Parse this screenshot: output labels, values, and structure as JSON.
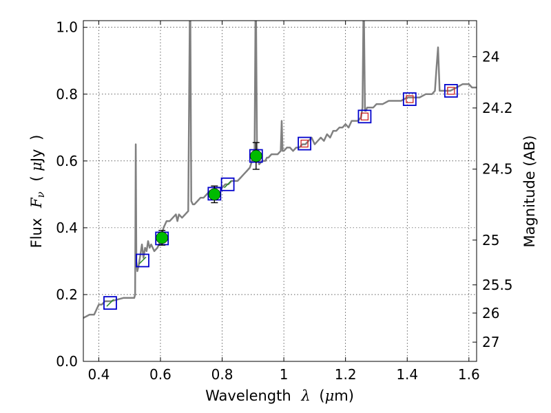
{
  "chart_data": {
    "type": "scatter",
    "xlabel": {
      "prefix": "Wavelength",
      "symbol": "λ",
      "units_open": "(",
      "units_mu": "μ",
      "units_rest": "m)"
    },
    "ylabel": {
      "prefix": "Flux",
      "symbol": "F",
      "sub": "ν",
      "units_open": "(",
      "units_mu": "μ",
      "units_rest": "Jy",
      "units_close": ")"
    },
    "y2label": "Magnitude (AB)",
    "xlim": [
      0.35,
      1.625
    ],
    "ylim": [
      0.0,
      1.02
    ],
    "grid": true,
    "x_ticks": [
      {
        "value": 0.4,
        "label": "0.4"
      },
      {
        "value": 0.6,
        "label": "0.6"
      },
      {
        "value": 0.8,
        "label": "0.8"
      },
      {
        "value": 1.0,
        "label": "1"
      },
      {
        "value": 1.2,
        "label": "1.2"
      },
      {
        "value": 1.4,
        "label": "1.4"
      },
      {
        "value": 1.6,
        "label": "1.6"
      }
    ],
    "y_ticks": [
      {
        "value": 0.0,
        "label": "0.0"
      },
      {
        "value": 0.2,
        "label": "0.2"
      },
      {
        "value": 0.4,
        "label": "0.4"
      },
      {
        "value": 0.6,
        "label": "0.6"
      },
      {
        "value": 0.8,
        "label": "0.8"
      },
      {
        "value": 1.0,
        "label": "1.0"
      }
    ],
    "mag_ticks": [
      {
        "mag": 24,
        "label": "24"
      },
      {
        "mag": 24.2,
        "label": "24.2"
      },
      {
        "mag": 24.5,
        "label": "24.5"
      },
      {
        "mag": 25,
        "label": "25"
      },
      {
        "mag": 25.5,
        "label": "25.5"
      },
      {
        "mag": 26,
        "label": "26"
      },
      {
        "mag": 27,
        "label": "27"
      }
    ],
    "model_spectrum": {
      "color": "#808080",
      "x": [
        0.35,
        0.37,
        0.385,
        0.4,
        0.41,
        0.42,
        0.43,
        0.44,
        0.46,
        0.48,
        0.5,
        0.51,
        0.515,
        0.518,
        0.52,
        0.522,
        0.525,
        0.53,
        0.535,
        0.54,
        0.545,
        0.55,
        0.555,
        0.56,
        0.565,
        0.57,
        0.58,
        0.59,
        0.6,
        0.61,
        0.62,
        0.63,
        0.64,
        0.65,
        0.655,
        0.66,
        0.67,
        0.68,
        0.69,
        0.695,
        0.697,
        0.7,
        0.705,
        0.71,
        0.72,
        0.73,
        0.74,
        0.75,
        0.76,
        0.77,
        0.78,
        0.79,
        0.8,
        0.81,
        0.82,
        0.83,
        0.84,
        0.85,
        0.86,
        0.87,
        0.88,
        0.89,
        0.9,
        0.905,
        0.908,
        0.91,
        0.913,
        0.916,
        0.92,
        0.93,
        0.94,
        0.945,
        0.95,
        0.96,
        0.97,
        0.98,
        0.99,
        0.993,
        0.996,
        1.0,
        1.01,
        1.02,
        1.03,
        1.04,
        1.05,
        1.06,
        1.07,
        1.08,
        1.09,
        1.1,
        1.11,
        1.12,
        1.13,
        1.14,
        1.15,
        1.16,
        1.17,
        1.18,
        1.19,
        1.2,
        1.21,
        1.22,
        1.23,
        1.24,
        1.25,
        1.255,
        1.258,
        1.26,
        1.263,
        1.266,
        1.27,
        1.28,
        1.29,
        1.3,
        1.32,
        1.34,
        1.36,
        1.38,
        1.4,
        1.42,
        1.44,
        1.46,
        1.48,
        1.49,
        1.495,
        1.5,
        1.505,
        1.51,
        1.52,
        1.54,
        1.56,
        1.58,
        1.6,
        1.61,
        1.625
      ],
      "y": [
        0.13,
        0.14,
        0.14,
        0.17,
        0.17,
        0.18,
        0.18,
        0.18,
        0.185,
        0.19,
        0.19,
        0.19,
        0.19,
        0.2,
        0.65,
        0.3,
        0.27,
        0.29,
        0.32,
        0.35,
        0.31,
        0.34,
        0.33,
        0.36,
        0.34,
        0.35,
        0.33,
        0.34,
        0.36,
        0.4,
        0.42,
        0.42,
        0.43,
        0.44,
        0.42,
        0.44,
        0.43,
        0.44,
        0.45,
        1.02,
        1.02,
        0.48,
        0.47,
        0.47,
        0.48,
        0.49,
        0.49,
        0.5,
        0.51,
        0.51,
        0.52,
        0.52,
        0.52,
        0.53,
        0.53,
        0.54,
        0.54,
        0.54,
        0.55,
        0.56,
        0.57,
        0.58,
        0.61,
        0.62,
        1.02,
        1.02,
        0.64,
        0.62,
        0.59,
        0.6,
        0.6,
        0.61,
        0.61,
        0.62,
        0.62,
        0.62,
        0.63,
        0.72,
        0.63,
        0.63,
        0.64,
        0.64,
        0.63,
        0.64,
        0.64,
        0.65,
        0.65,
        0.66,
        0.67,
        0.65,
        0.66,
        0.67,
        0.66,
        0.68,
        0.67,
        0.69,
        0.69,
        0.7,
        0.7,
        0.71,
        0.7,
        0.72,
        0.72,
        0.72,
        0.73,
        0.76,
        1.02,
        1.02,
        0.75,
        0.75,
        0.76,
        0.76,
        0.76,
        0.77,
        0.77,
        0.78,
        0.78,
        0.78,
        0.79,
        0.79,
        0.79,
        0.8,
        0.8,
        0.81,
        0.88,
        0.94,
        0.81,
        0.81,
        0.81,
        0.81,
        0.82,
        0.83,
        0.83,
        0.82,
        0.82
      ]
    },
    "photometry": [
      {
        "x": 0.437,
        "y": 0.175,
        "box_color": "#0000cc",
        "mark_color": "#2a8a2a",
        "mark": "line"
      },
      {
        "x": 0.542,
        "y": 0.302,
        "box_color": "#0000cc",
        "mark_color": "#2a8a2a",
        "mark": "line"
      },
      {
        "x": 0.605,
        "y": 0.368,
        "box_color": "#0000cc",
        "mark_color": "#2a8a2a",
        "mark": "line"
      },
      {
        "x": 0.775,
        "y": 0.502,
        "box_color": "#0000cc",
        "mark_color": "#2a8a2a",
        "mark": "line"
      },
      {
        "x": 0.818,
        "y": 0.53,
        "box_color": "#0000cc",
        "mark_color": "#2a8a2a",
        "mark": "line"
      },
      {
        "x": 0.91,
        "y": 0.615,
        "box_color": "#0000cc",
        "mark_color": "#2a8a2a",
        "mark": "line"
      },
      {
        "x": 1.067,
        "y": 0.652,
        "box_color": "#0000cc",
        "mark_color": "#cc2222",
        "mark": "square"
      },
      {
        "x": 1.262,
        "y": 0.733,
        "box_color": "#0000cc",
        "mark_color": "#cc2222",
        "mark": "square"
      },
      {
        "x": 1.408,
        "y": 0.785,
        "box_color": "#0000cc",
        "mark_color": "#cc2222",
        "mark": "square"
      },
      {
        "x": 1.542,
        "y": 0.81,
        "box_color": "#0000cc",
        "mark_color": "#cc2222",
        "mark": "square"
      }
    ],
    "measurements": [
      {
        "x": 0.605,
        "y": 0.37,
        "err": 0.022,
        "color": "#00bb00"
      },
      {
        "x": 0.775,
        "y": 0.5,
        "err": 0.025,
        "color": "#00bb00"
      },
      {
        "x": 0.91,
        "y": 0.615,
        "err": 0.04,
        "color": "#00bb00"
      }
    ]
  }
}
